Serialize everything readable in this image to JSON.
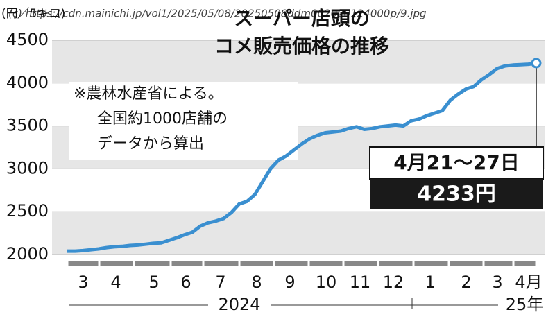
{
  "chart_data": {
    "type": "line",
    "title": [
      "スーパー店頭の",
      "コメ販売価格の推移"
    ],
    "y_unit": "(円／5キロ)",
    "note": [
      "※農林水産省による。",
      "全国約1000店舗の",
      "データから算出"
    ],
    "watermark": "(c) https://cdn.mainichi.jp/vol1/2025/05/08/20250508ddm002020124000p/9.jpg",
    "months": [
      "3",
      "4",
      "5",
      "6",
      "7",
      "8",
      "9",
      "10",
      "11",
      "12",
      "1",
      "2",
      "3",
      "4月"
    ],
    "years": [
      "2024",
      "25年"
    ],
    "series": [
      {
        "name": "コメ販売価格",
        "color": "#3a8fd0",
        "values": [
          2040,
          2040,
          2045,
          2055,
          2065,
          2080,
          2090,
          2095,
          2105,
          2110,
          2120,
          2130,
          2135,
          2165,
          2195,
          2230,
          2260,
          2330,
          2370,
          2390,
          2420,
          2490,
          2590,
          2620,
          2700,
          2850,
          3000,
          3100,
          3150,
          3220,
          3290,
          3350,
          3390,
          3420,
          3430,
          3440,
          3470,
          3490,
          3460,
          3470,
          3490,
          3500,
          3510,
          3500,
          3560,
          3580,
          3620,
          3650,
          3680,
          3800,
          3870,
          3930,
          3960,
          4040,
          4100,
          4170,
          4200,
          4210,
          4214,
          4220,
          4233
        ]
      }
    ],
    "annotation": {
      "period": "4月21～27日",
      "value_label": "4233円"
    },
    "ylim": [
      2000,
      4500
    ],
    "yticks": [
      2000,
      2500,
      3000,
      3500,
      4000,
      4500
    ],
    "grid": true
  }
}
